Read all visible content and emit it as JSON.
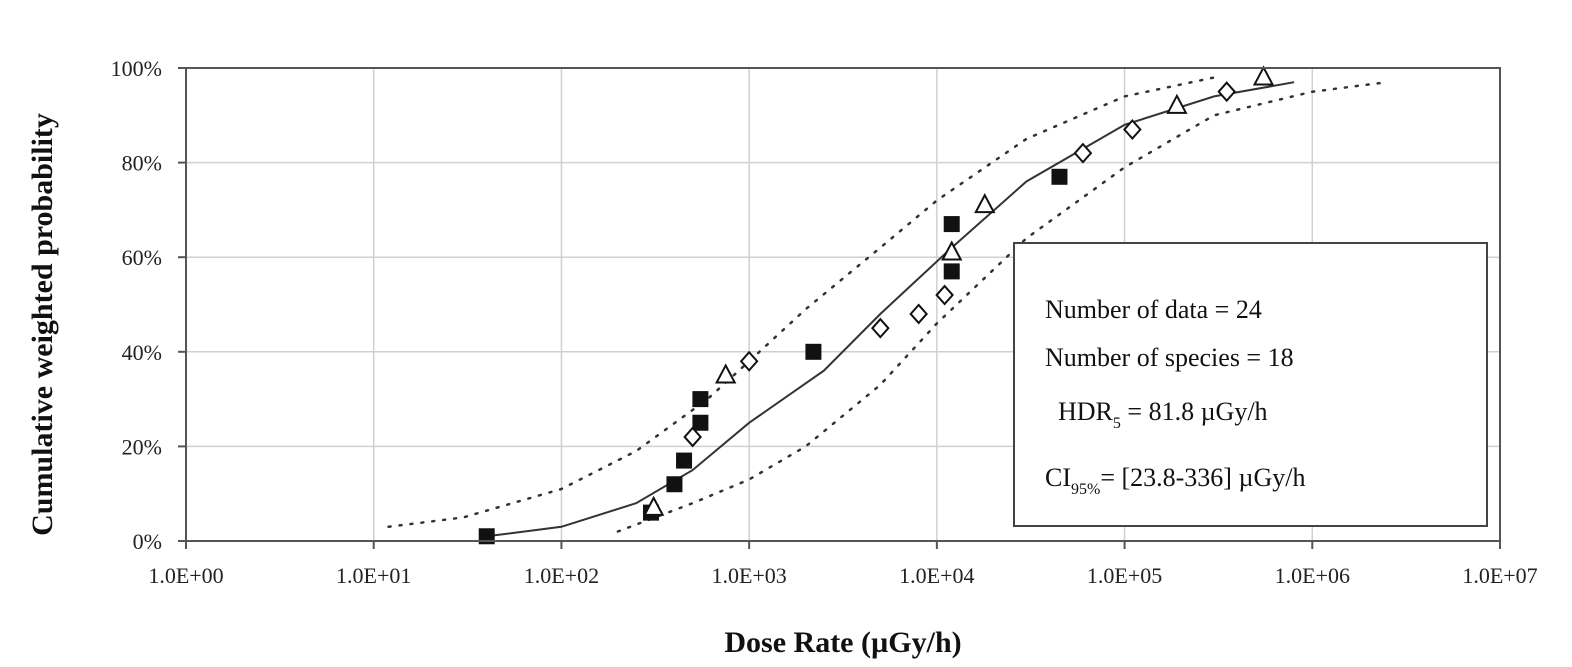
{
  "chart_data": {
    "type": "scatter",
    "title": "",
    "xlabel": "Dose Rate (µGy/h)",
    "ylabel": "Cumulative weighted probability",
    "xscale": "log",
    "xlim": [
      1,
      10000000
    ],
    "ylim": [
      0,
      100
    ],
    "grid": true,
    "x_tick_labels": [
      "1.0E+00",
      "1.0E+01",
      "1.0E+02",
      "1.0E+03",
      "1.0E+04",
      "1.0E+05",
      "1.0E+06",
      "1.0E+07"
    ],
    "y_tick_labels": [
      "0%",
      "20%",
      "40%",
      "60%",
      "80%",
      "100%"
    ],
    "series": [
      {
        "marker": "filled-square",
        "color": "#111111",
        "points": [
          {
            "x": 40,
            "y": 1
          },
          {
            "x": 300,
            "y": 6
          },
          {
            "x": 400,
            "y": 12
          },
          {
            "x": 450,
            "y": 17
          },
          {
            "x": 550,
            "y": 25
          },
          {
            "x": 550,
            "y": 30
          },
          {
            "x": 2200,
            "y": 40
          },
          {
            "x": 12000,
            "y": 57
          },
          {
            "x": 12000,
            "y": 67
          },
          {
            "x": 45000,
            "y": 77
          }
        ]
      },
      {
        "marker": "open-diamond",
        "color": "#111111",
        "points": [
          {
            "x": 500,
            "y": 22
          },
          {
            "x": 1000,
            "y": 38
          },
          {
            "x": 5000,
            "y": 45
          },
          {
            "x": 8000,
            "y": 48
          },
          {
            "x": 11000,
            "y": 52
          },
          {
            "x": 60000,
            "y": 82
          },
          {
            "x": 110000,
            "y": 87
          },
          {
            "x": 350000,
            "y": 95
          }
        ]
      },
      {
        "marker": "open-triangle",
        "color": "#111111",
        "points": [
          {
            "x": 310,
            "y": 7
          },
          {
            "x": 750,
            "y": 35
          },
          {
            "x": 12000,
            "y": 61
          },
          {
            "x": 18000,
            "y": 71
          },
          {
            "x": 190000,
            "y": 92
          },
          {
            "x": 550000,
            "y": 98
          }
        ]
      }
    ],
    "fit_curve": {
      "style": "solid",
      "points": [
        [
          40,
          1
        ],
        [
          100,
          3
        ],
        [
          250,
          8
        ],
        [
          500,
          15
        ],
        [
          1000,
          25
        ],
        [
          2500,
          36
        ],
        [
          5000,
          48
        ],
        [
          12000,
          62
        ],
        [
          30000,
          76
        ],
        [
          100000,
          88
        ],
        [
          300000,
          94
        ],
        [
          800000,
          97
        ]
      ]
    },
    "ci_lower": {
      "style": "dotted",
      "points": [
        [
          200,
          2
        ],
        [
          500,
          8
        ],
        [
          1000,
          13
        ],
        [
          2000,
          20
        ],
        [
          5000,
          33
        ],
        [
          10000,
          46
        ],
        [
          30000,
          64
        ],
        [
          100000,
          79
        ],
        [
          300000,
          90
        ],
        [
          1000000,
          95
        ],
        [
          2500000,
          97
        ]
      ]
    },
    "ci_upper": {
      "style": "dotted",
      "points": [
        [
          12,
          3
        ],
        [
          30,
          5
        ],
        [
          100,
          11
        ],
        [
          250,
          19
        ],
        [
          600,
          30
        ],
        [
          1000,
          38
        ],
        [
          2000,
          49
        ],
        [
          5000,
          62
        ],
        [
          10000,
          72
        ],
        [
          30000,
          85
        ],
        [
          100000,
          94
        ],
        [
          300000,
          98
        ]
      ]
    },
    "legend_box": {
      "position": "right",
      "lines": [
        {
          "text": "Number of data = 24"
        },
        {
          "text": "Number of species = 18"
        },
        {
          "main": "HDR",
          "sub": "5",
          "rest": " = 81.8 µGy/h"
        },
        {
          "main": "CI",
          "sub": "95%",
          "rest": "= [23.8-336] µGy/h"
        }
      ]
    }
  }
}
